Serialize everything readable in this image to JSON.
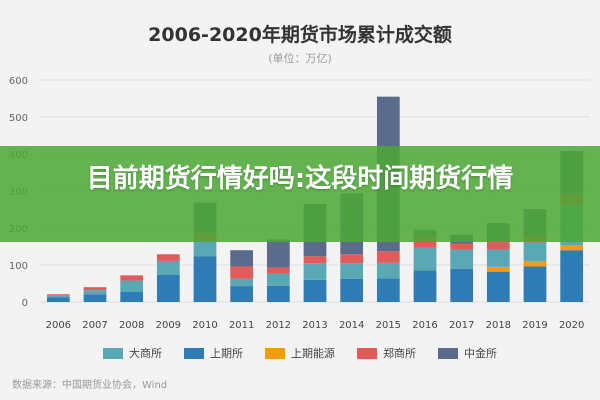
{
  "chart_data": {
    "type": "bar",
    "stacked": true,
    "title": "2006-2020年期货市场累计成交额",
    "subtitle": "(单位：万亿)",
    "ylim": [
      0,
      600
    ],
    "yticks": [
      0,
      100,
      200,
      300,
      400,
      500,
      600
    ],
    "grid": true,
    "legend_position": "bottom",
    "categories": [
      "2006",
      "2007",
      "2008",
      "2009",
      "2010",
      "2011",
      "2012",
      "2013",
      "2014",
      "2015",
      "2016",
      "2017",
      "2018",
      "2019",
      "2020"
    ],
    "series": [
      {
        "name": "上期所",
        "color": "#2e7bb6",
        "values": [
          13,
          21,
          28,
          73,
          123,
          43,
          44,
          60,
          63,
          64,
          85,
          90,
          82,
          96,
          140
        ]
      },
      {
        "name": "上期能源",
        "color": "#f39c12",
        "values": [
          0,
          0,
          0,
          0,
          0,
          0,
          0,
          0,
          0,
          0,
          0,
          0,
          13,
          15,
          13
        ]
      },
      {
        "name": "大商所",
        "color": "#5aa8b3",
        "values": [
          5,
          11,
          30,
          38,
          42,
          20,
          33,
          45,
          42,
          42,
          62,
          52,
          47,
          50,
          110
        ]
      },
      {
        "name": "郑商所",
        "color": "#e05c5c",
        "values": [
          3,
          8,
          14,
          18,
          22,
          33,
          16,
          19,
          24,
          31,
          30,
          16,
          20,
          20,
          30
        ]
      },
      {
        "name": "中金所",
        "color": "#5a6b8c",
        "values": [
          0,
          0,
          0,
          0,
          82,
          44,
          76,
          141,
          164,
          418,
          18,
          24,
          51,
          70,
          115
        ]
      }
    ]
  },
  "banner": {
    "text": "目前期货行情好吗:这段时间期货行情"
  },
  "legend": {
    "order": [
      "大商所",
      "上期所",
      "上期能源",
      "郑商所",
      "中金所"
    ]
  },
  "source": "数据来源：中国期货业协会，Wind",
  "colors": {
    "background": "#f3f3f3",
    "banner": "#4ca834",
    "grid": "#dddddd"
  }
}
